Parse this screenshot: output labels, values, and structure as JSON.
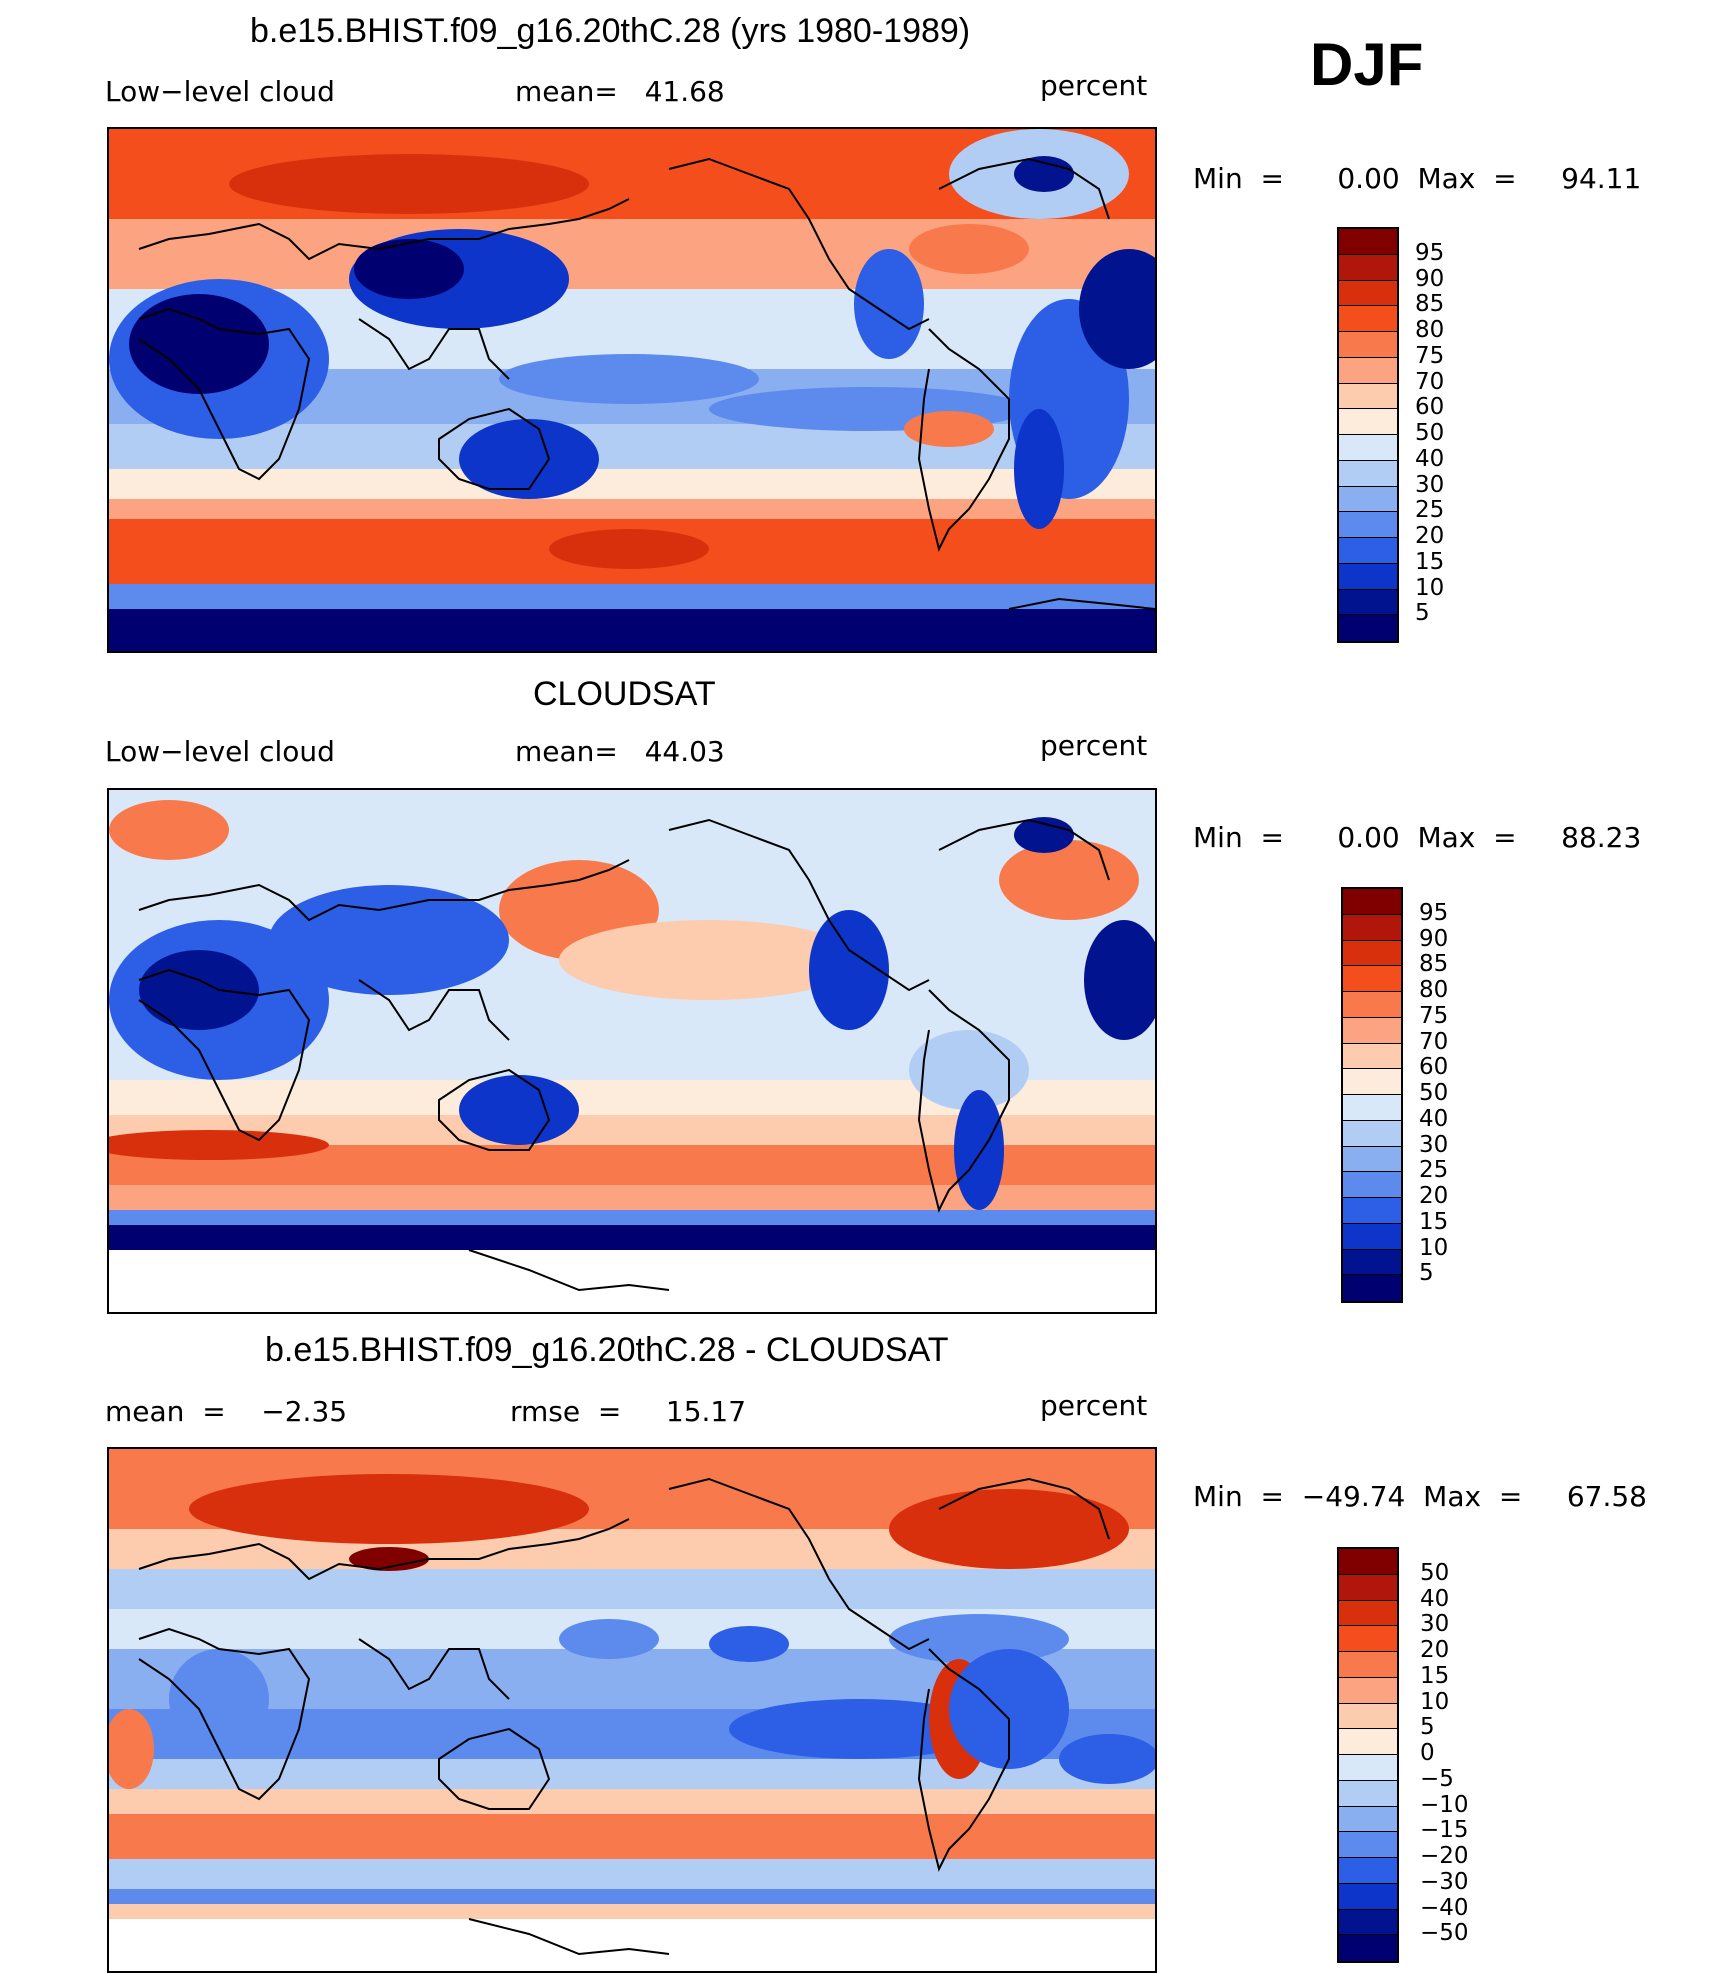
{
  "season": "DJF",
  "panels": [
    {
      "id": "model",
      "title": "b.e15.BHIST.f09_g16.20thC.28 (yrs 1980-1989)",
      "left_label": "Low−level cloud",
      "center_label": "mean=   41.68",
      "units": "percent",
      "minmax": "Min  =      0.00  Max  =     94.11",
      "levels": [
        "95",
        "90",
        "85",
        "80",
        "75",
        "70",
        "60",
        "50",
        "40",
        "30",
        "25",
        "20",
        "15",
        "10",
        "5"
      ],
      "colors": [
        "#800000",
        "#b0170a",
        "#d8300c",
        "#f54e1d",
        "#f87a4c",
        "#fca481",
        "#fdcbae",
        "#fdebdb",
        "#d8e8f8",
        "#b2cdf3",
        "#8aaff0",
        "#5d8bed",
        "#2c5ee6",
        "#0d35c9",
        "#02138f",
        "#000070"
      ]
    },
    {
      "id": "obs",
      "title": "CLOUDSAT",
      "left_label": "Low−level cloud",
      "center_label": "mean=   44.03",
      "units": "percent",
      "minmax": "Min  =      0.00  Max  =     88.23",
      "levels": [
        "95",
        "90",
        "85",
        "80",
        "75",
        "70",
        "60",
        "50",
        "40",
        "30",
        "25",
        "20",
        "15",
        "10",
        "5"
      ],
      "colors": [
        "#800000",
        "#b0170a",
        "#d8300c",
        "#f54e1d",
        "#f87a4c",
        "#fca481",
        "#fdcbae",
        "#fdebdb",
        "#d8e8f8",
        "#b2cdf3",
        "#8aaff0",
        "#5d8bed",
        "#2c5ee6",
        "#0d35c9",
        "#02138f",
        "#000070"
      ]
    },
    {
      "id": "diff",
      "title": "b.e15.BHIST.f09_g16.20thC.28 - CLOUDSAT",
      "left_label": "mean  =    −2.35",
      "center_label": "rmse  =     15.17",
      "units": "percent",
      "minmax": "Min  =  −49.74  Max  =     67.58",
      "levels": [
        "50",
        "40",
        "30",
        "20",
        "15",
        "10",
        "5",
        "0",
        "−5",
        "−10",
        "−15",
        "−20",
        "−30",
        "−40",
        "−50"
      ],
      "colors": [
        "#800000",
        "#b0170a",
        "#d8300c",
        "#f54e1d",
        "#f87a4c",
        "#fca481",
        "#fdcbae",
        "#fdebdb",
        "#d8e8f8",
        "#b2cdf3",
        "#8aaff0",
        "#5d8bed",
        "#2c5ee6",
        "#0d35c9",
        "#02138f",
        "#000070"
      ]
    }
  ]
}
